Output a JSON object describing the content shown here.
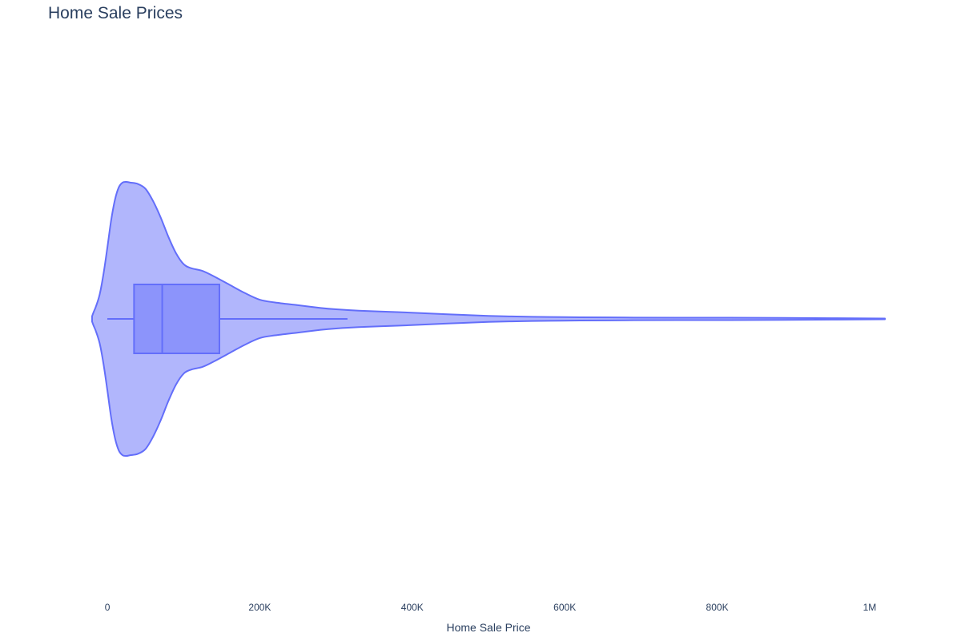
{
  "chart_data": {
    "type": "violin",
    "title": "Home Sale Prices",
    "xlabel": "Home Sale Price",
    "ylabel": "",
    "orientation": "horizontal",
    "xlim": [
      -20000,
      1020000
    ],
    "x_ticks": [
      {
        "value": 0,
        "label": "0"
      },
      {
        "value": 200000,
        "label": "200K"
      },
      {
        "value": 400000,
        "label": "400K"
      },
      {
        "value": 600000,
        "label": "600K"
      },
      {
        "value": 800000,
        "label": "800K"
      },
      {
        "value": 1000000,
        "label": "1M"
      }
    ],
    "grid": false,
    "legend": "none",
    "colors": {
      "line": "#636efa",
      "violin_fill": "#b1b6fc",
      "box_fill": "#8c94fb",
      "text": "#2a3f5f"
    },
    "series": [
      {
        "density": [
          {
            "x": -20000,
            "d": 0.02
          },
          {
            "x": -18000,
            "d": 0.05
          },
          {
            "x": -15000,
            "d": 0.09
          },
          {
            "x": -10000,
            "d": 0.18
          },
          {
            "x": -5000,
            "d": 0.33
          },
          {
            "x": 0,
            "d": 0.52
          },
          {
            "x": 5000,
            "d": 0.72
          },
          {
            "x": 10000,
            "d": 0.87
          },
          {
            "x": 15000,
            "d": 0.96
          },
          {
            "x": 20000,
            "d": 0.995
          },
          {
            "x": 25000,
            "d": 1.0
          },
          {
            "x": 30000,
            "d": 0.995
          },
          {
            "x": 40000,
            "d": 0.985
          },
          {
            "x": 50000,
            "d": 0.95
          },
          {
            "x": 60000,
            "d": 0.86
          },
          {
            "x": 70000,
            "d": 0.74
          },
          {
            "x": 80000,
            "d": 0.6
          },
          {
            "x": 90000,
            "d": 0.48
          },
          {
            "x": 100000,
            "d": 0.4
          },
          {
            "x": 110000,
            "d": 0.37
          },
          {
            "x": 125000,
            "d": 0.35
          },
          {
            "x": 140000,
            "d": 0.31
          },
          {
            "x": 160000,
            "d": 0.25
          },
          {
            "x": 180000,
            "d": 0.19
          },
          {
            "x": 200000,
            "d": 0.14
          },
          {
            "x": 220000,
            "d": 0.12
          },
          {
            "x": 250000,
            "d": 0.1
          },
          {
            "x": 280000,
            "d": 0.08
          },
          {
            "x": 300000,
            "d": 0.07
          },
          {
            "x": 330000,
            "d": 0.06
          },
          {
            "x": 380000,
            "d": 0.05
          },
          {
            "x": 420000,
            "d": 0.04
          },
          {
            "x": 450000,
            "d": 0.033
          },
          {
            "x": 480000,
            "d": 0.026
          },
          {
            "x": 500000,
            "d": 0.022
          },
          {
            "x": 530000,
            "d": 0.018
          },
          {
            "x": 580000,
            "d": 0.014
          },
          {
            "x": 620000,
            "d": 0.012
          },
          {
            "x": 680000,
            "d": 0.01
          },
          {
            "x": 750000,
            "d": 0.009
          },
          {
            "x": 850000,
            "d": 0.008
          },
          {
            "x": 950000,
            "d": 0.005
          },
          {
            "x": 1020000,
            "d": 0.003
          }
        ],
        "box": {
          "min": 0,
          "q1": 35000,
          "median": 72000,
          "q3": 147000,
          "upper_fence": 315000
        }
      }
    ]
  }
}
